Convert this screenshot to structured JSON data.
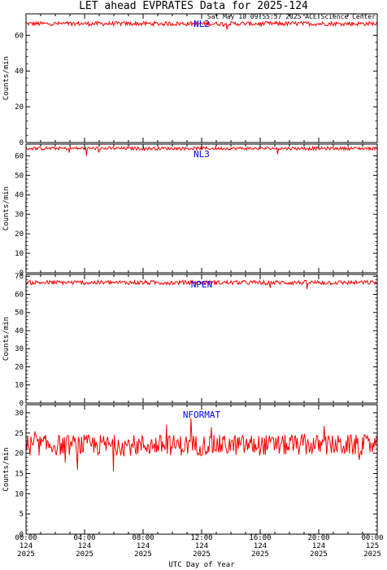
{
  "header": {
    "title": "LET ahead EVPRATES Data for 2025-124",
    "timestamp": "Sat May 10 09:55:37 2025 ACE Science Center"
  },
  "colors": {
    "series": "#ff0000",
    "panel_label": "#0000ff",
    "axes": "#000000"
  },
  "chart_data": [
    {
      "type": "line",
      "series_name": "NL2",
      "ylabel": "Counts/min",
      "ylim": [
        0,
        72
      ],
      "yticks": [
        0,
        20,
        40,
        60
      ],
      "x_range_hours": [
        0,
        24
      ],
      "baseline": 66.5,
      "noise": 1.2,
      "grid": false
    },
    {
      "type": "line",
      "series_name": "NL3",
      "ylabel": "Counts/min",
      "ylim": [
        0,
        66
      ],
      "yticks": [
        0,
        10,
        20,
        30,
        40,
        50,
        60
      ],
      "x_range_hours": [
        0,
        24
      ],
      "baseline": 63.8,
      "noise": 0.8,
      "grid": false
    },
    {
      "type": "line",
      "series_name": "NPEN",
      "ylabel": "Counts/min",
      "ylim": [
        0,
        71
      ],
      "yticks": [
        0,
        10,
        20,
        30,
        40,
        50,
        60,
        70
      ],
      "x_range_hours": [
        0,
        24
      ],
      "baseline": 66.5,
      "noise": 1.2,
      "grid": false
    },
    {
      "type": "line",
      "series_name": "NFORMAT",
      "ylabel": "Counts/min",
      "ylim": [
        0,
        32
      ],
      "yticks": [
        0,
        5,
        10,
        15,
        20,
        25,
        30
      ],
      "x_range_hours": [
        0,
        24
      ],
      "baseline": 22,
      "noise": 2.6,
      "grid": false
    }
  ],
  "xaxis": {
    "label": "UTC Day of Year",
    "ticks": [
      {
        "hour": 0,
        "time": "00:00",
        "day": "124",
        "year": "2025"
      },
      {
        "hour": 4,
        "time": "04:00",
        "day": "124",
        "year": "2025"
      },
      {
        "hour": 8,
        "time": "08:00",
        "day": "124",
        "year": "2025"
      },
      {
        "hour": 12,
        "time": "12:00",
        "day": "124",
        "year": "2025"
      },
      {
        "hour": 16,
        "time": "16:00",
        "day": "124",
        "year": "2025"
      },
      {
        "hour": 20,
        "time": "20:00",
        "day": "124",
        "year": "2025"
      },
      {
        "hour": 24,
        "time": "00:00",
        "day": "125",
        "year": "2025"
      }
    ]
  }
}
